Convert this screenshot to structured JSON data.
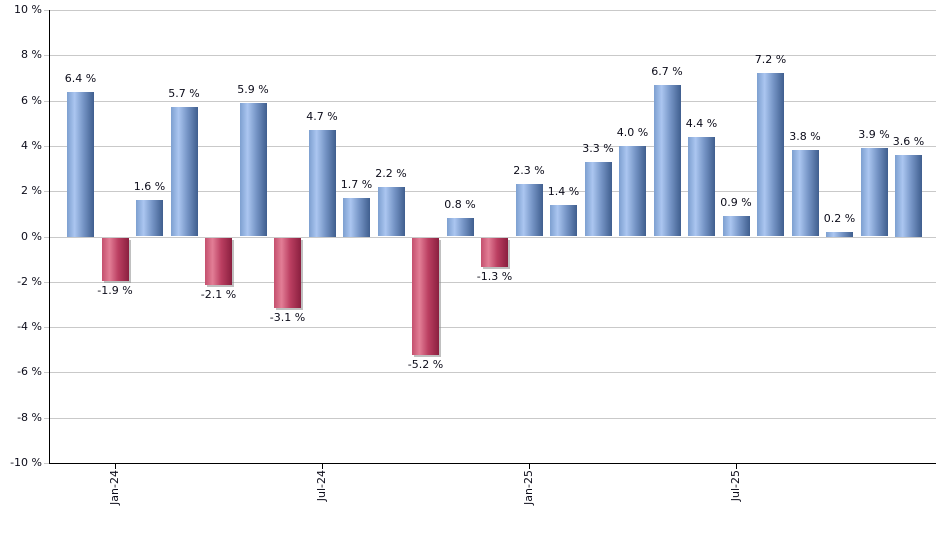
{
  "chart_data": {
    "type": "bar",
    "title": "",
    "bar_count": 25,
    "values": [
      6.4,
      -1.9,
      1.6,
      5.7,
      -2.1,
      5.9,
      -3.1,
      4.7,
      1.7,
      2.2,
      -5.2,
      0.8,
      -1.3,
      2.3,
      1.4,
      3.3,
      4.0,
      6.7,
      4.4,
      0.9,
      7.2,
      3.8,
      0.2,
      3.9,
      3.6
    ],
    "value_labels": [
      "6.4 %",
      "-1.9 %",
      "1.6 %",
      "5.7 %",
      "-2.1 %",
      "5.9 %",
      "-3.1 %",
      "4.7 %",
      "1.7 %",
      "2.2 %",
      "-5.2 %",
      "0.8 %",
      "-1.3 %",
      "2.3 %",
      "1.4 %",
      "3.3 %",
      "4.0 %",
      "6.7 %",
      "4.4 %",
      "0.9 %",
      "7.2 %",
      "3.8 %",
      "0.2 %",
      "3.9 %",
      "3.6 %"
    ],
    "y_axis": {
      "min": -10,
      "max": 10,
      "step": 2,
      "tick_labels": [
        "10 %",
        "8 %",
        "6 %",
        "4 %",
        "2 %",
        "0 %",
        "-2 %",
        "-4 %",
        "-6 %",
        "-8 %",
        "-10 %"
      ]
    },
    "x_axis": {
      "tick_labels": [
        {
          "label": "Jan-24",
          "bar_index": 1
        },
        {
          "label": "Jul-24",
          "bar_index": 7
        },
        {
          "label": "Jan-25",
          "bar_index": 13
        },
        {
          "label": "Jul-25",
          "bar_index": 19
        }
      ]
    },
    "grid": true,
    "legend": false,
    "colors": {
      "positive_left": "#7d9fd0",
      "positive_highlight": "#abc6f0",
      "positive_mid": "#7796c7",
      "positive_dark": "#3f5e8e",
      "negative_left": "#c4506e",
      "negative_highlight": "#e27e96",
      "negative_mid": "#bb3f61",
      "negative_dark": "#8a1f3f",
      "gridline": "#c9c9c9",
      "axis": "#000000",
      "label_text": "#0c0c1a",
      "background": "#ffffff"
    }
  }
}
